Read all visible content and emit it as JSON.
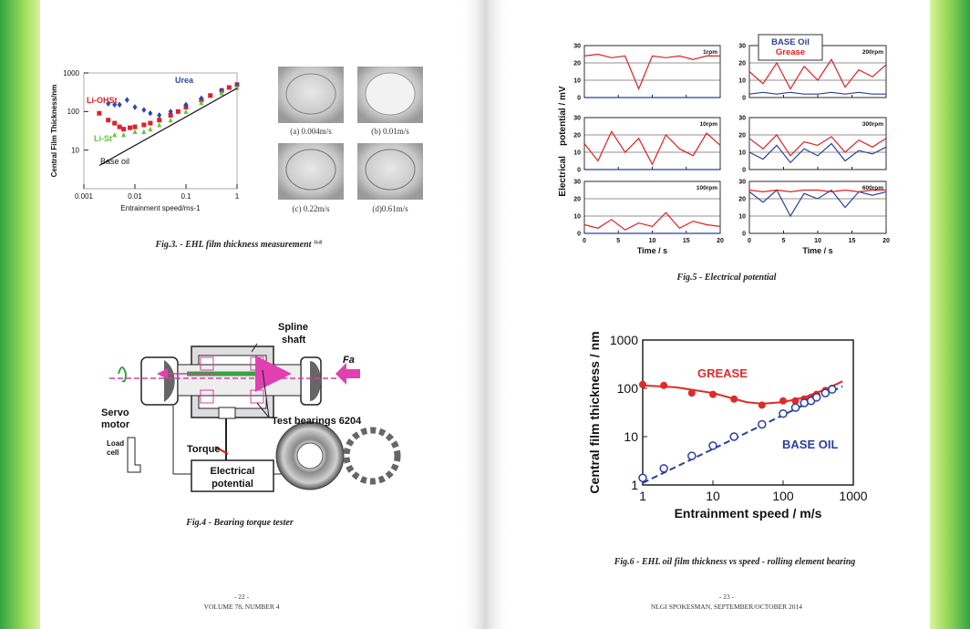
{
  "pages": [
    {
      "folio": "- 22 -",
      "footer": "VOLUME 78, NUMBER 4"
    },
    {
      "folio": "- 23 -",
      "footer": "NLGI SPOKESMAN, SEPTEMBER/OCTOBER 2014"
    }
  ],
  "captions": {
    "fig3": "Fig.3. - EHL film thickness measurement",
    "fig3_ref": "3),4)",
    "fig4": "Fig.4 - Bearing torque tester",
    "fig5": "Fig.5 - Electrical potential",
    "fig6": "Fig.6 - EHL oil film thickness vs speed - rolling element bearing"
  },
  "fig3_photos": [
    "(a) 0.004m/s",
    "(b) 0.01m/s",
    "(c) 0.22m/s",
    "(d)0.61m/s"
  ],
  "fig4_labels": [
    "Spline",
    "shaft",
    "Fa",
    "Servo",
    "motor",
    "Load",
    "cell",
    "Test bearings 6204",
    "Torque",
    "Electrical",
    "potential"
  ],
  "chart_data": [
    {
      "type": "scatter",
      "xlabel": "Entrainment speed/ms-1",
      "ylabel": "Central Film Thickness/nm",
      "xlog": true,
      "ylog": true,
      "xlim": [
        0.001,
        1
      ],
      "ylim": [
        1,
        1000
      ],
      "xticks": [
        0.001,
        0.01,
        0.1,
        1
      ],
      "yticks": [
        10,
        100,
        1000
      ],
      "series": [
        {
          "name": "Li-OHSt",
          "color": "#e0202a",
          "marker": "square",
          "x": [
            0.002,
            0.003,
            0.004,
            0.005,
            0.006,
            0.008,
            0.01,
            0.015,
            0.02,
            0.03,
            0.05,
            0.07,
            0.1,
            0.2,
            0.3,
            0.5,
            0.7,
            1
          ],
          "values": [
            90,
            60,
            50,
            40,
            35,
            38,
            40,
            45,
            50,
            60,
            80,
            100,
            130,
            200,
            260,
            350,
            420,
            500
          ]
        },
        {
          "name": "Urea",
          "color": "#2a48b0",
          "marker": "diamond",
          "x": [
            0.003,
            0.004,
            0.005,
            0.007,
            0.01,
            0.015,
            0.02,
            0.03,
            0.05,
            0.1,
            0.2,
            0.5,
            1
          ],
          "values": [
            160,
            150,
            150,
            200,
            130,
            110,
            90,
            80,
            100,
            150,
            220,
            350,
            480
          ]
        },
        {
          "name": "Li-St",
          "color": "#6ac43a",
          "marker": "triangle",
          "x": [
            0.004,
            0.006,
            0.01,
            0.015,
            0.02,
            0.03,
            0.05,
            0.1,
            0.2,
            0.5,
            1
          ],
          "values": [
            25,
            25,
            30,
            30,
            35,
            45,
            60,
            100,
            170,
            300,
            420
          ]
        },
        {
          "name": "Base oil",
          "color": "#111111",
          "marker": "line",
          "x": [
            0.002,
            1
          ],
          "values": [
            4,
            400
          ]
        }
      ]
    },
    {
      "type": "line",
      "ylabel": "Electrical    potential / mV",
      "xlabel": "Time / s",
      "xlim": [
        0,
        20
      ],
      "ylim": [
        0,
        30
      ],
      "xticks": [
        0,
        5,
        10,
        15,
        20
      ],
      "yticks": [
        0,
        10,
        20,
        30
      ],
      "x": [
        0,
        2,
        4,
        6,
        8,
        10,
        12,
        14,
        16,
        18,
        20
      ],
      "series": [
        {
          "name": "BASE Oil",
          "color": "#2b3f9e"
        },
        {
          "name": "Grease",
          "color": "#e02020"
        }
      ],
      "panels": [
        {
          "label": "1rpm",
          "values": [
            [
              0,
              0,
              0,
              0,
              0,
              0,
              0,
              0,
              0,
              0,
              0
            ],
            [
              24,
              25,
              23,
              24,
              5,
              24,
              23,
              24,
              22,
              24,
              24
            ]
          ]
        },
        {
          "label": "200rpm",
          "values": [
            [
              2,
              3,
              2,
              3,
              2,
              2,
              3,
              2,
              3,
              2,
              2
            ],
            [
              15,
              8,
              20,
              5,
              18,
              10,
              22,
              6,
              16,
              12,
              19
            ]
          ]
        },
        {
          "label": "10rpm",
          "values": [
            [
              0,
              0,
              0,
              0,
              0,
              0,
              0,
              0,
              0,
              0,
              0
            ],
            [
              15,
              5,
              22,
              10,
              18,
              3,
              20,
              12,
              8,
              21,
              14
            ]
          ]
        },
        {
          "label": "300rpm",
          "values": [
            [
              10,
              6,
              14,
              4,
              12,
              8,
              15,
              5,
              11,
              9,
              13
            ],
            [
              18,
              12,
              20,
              8,
              16,
              14,
              19,
              10,
              17,
              13,
              18
            ]
          ]
        },
        {
          "label": "100rpm",
          "values": [
            [
              0,
              0,
              0,
              0,
              0,
              0,
              0,
              0,
              0,
              0,
              0
            ],
            [
              5,
              3,
              8,
              2,
              6,
              4,
              12,
              3,
              7,
              5,
              4
            ]
          ]
        },
        {
          "label": "600rpm",
          "values": [
            [
              24,
              18,
              25,
              10,
              23,
              20,
              25,
              15,
              24,
              22,
              24
            ],
            [
              25,
              24,
              25,
              24,
              25,
              25,
              24,
              25,
              24,
              25,
              25
            ]
          ]
        }
      ]
    },
    {
      "type": "scatter",
      "xlabel": "Entrainment speed / m/s",
      "ylabel": "Central film thickness / nm",
      "xlog": true,
      "ylog": true,
      "xlim": [
        1,
        1000
      ],
      "ylim": [
        1,
        1000
      ],
      "xticks": [
        1,
        10,
        100,
        1000
      ],
      "yticks": [
        1,
        10,
        100,
        1000
      ],
      "series": [
        {
          "name": "GREASE",
          "color": "#e02a2a",
          "marker": "circle",
          "x": [
            1,
            2,
            5,
            10,
            20,
            50,
            100,
            150,
            200,
            250,
            300,
            400,
            500
          ],
          "values": [
            120,
            115,
            80,
            75,
            60,
            45,
            55,
            55,
            60,
            65,
            75,
            90,
            100
          ],
          "fit_x": [
            1,
            3,
            10,
            30,
            50,
            100,
            200,
            400,
            700
          ],
          "fit_values": [
            115,
            105,
            80,
            52,
            48,
            52,
            65,
            95,
            140
          ]
        },
        {
          "name": "BASE OIL",
          "color": "#2a3fa0",
          "marker": "circle-open",
          "fit_dash": true,
          "x": [
            1,
            2,
            5,
            10,
            20,
            50,
            100,
            150,
            200,
            250,
            300,
            400,
            500
          ],
          "values": [
            1.4,
            2.2,
            4,
            6.5,
            10,
            18,
            30,
            40,
            50,
            55,
            65,
            80,
            95
          ],
          "fit_x": [
            1,
            700
          ],
          "fit_values": [
            1.1,
            110
          ]
        }
      ]
    }
  ]
}
